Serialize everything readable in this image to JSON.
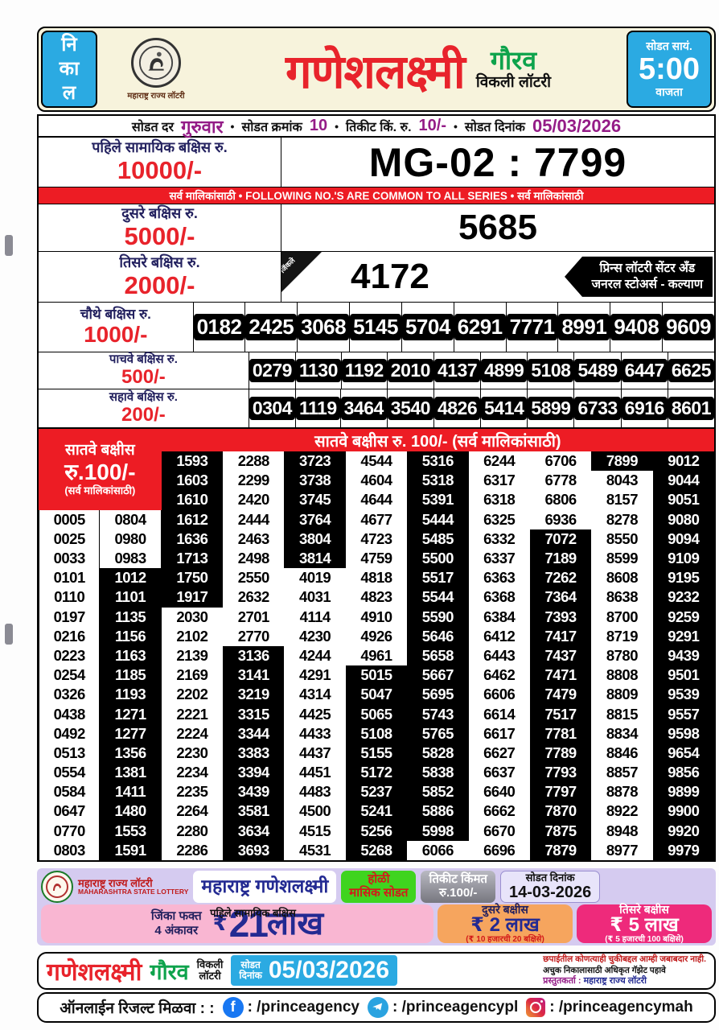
{
  "header": {
    "left_vertical": [
      "नि",
      "का",
      "ल"
    ],
    "logo_caption": "महाराष्ट्र राज्य लॉटरी",
    "title": "गणेशलक्ष्मी",
    "subtitle": "गौरव",
    "subtitle2": "विकली लॉटरी",
    "right_top": "सोडत सायं.",
    "right_time": "5:00",
    "right_bottom": "वाजता"
  },
  "infobar": {
    "draw_day_label": "सोडत दर",
    "draw_day": "गुरुवार",
    "bullet": "•",
    "draw_no_label": "सोडत क्रमांक",
    "draw_no": "10",
    "ticket_label": "तिकीट किं. रु.",
    "ticket_price": "10/-",
    "date_label": "सोडत दिनांक",
    "date": "05/03/2026"
  },
  "prizes": {
    "first": {
      "label": "पहिले सामायिक बक्षिस रु.",
      "amount": "10000/-",
      "number": "MG-02 : 7799"
    },
    "common_bar": "सर्व मालिकांसाठी  •  FOLLOWING NO.'S ARE COMMON TO ALL SERIES  •  सर्व मालिकांसाठी",
    "second": {
      "label": "दुसरे बक्षिस रु.",
      "amount": "5000/-",
      "number": "5685"
    },
    "third": {
      "label": "तिसरे बक्षिस रु.",
      "amount": "2000/-",
      "number": "4172",
      "ribbon": "जिंकले",
      "seller_line1": "प्रिन्स लॉटरी सेंटर अँड",
      "seller_line2": "जनरल स्टोअर्स - कल्याण"
    },
    "fourth": {
      "label": "चौथे बक्षिस रु.",
      "amount": "1000/-",
      "numbers": [
        "0182",
        "2425",
        "3068",
        "5145",
        "5704",
        "6291",
        "7771",
        "8991",
        "9408",
        "9609"
      ]
    },
    "fifth": {
      "label": "पाचवे बक्षिस रु.",
      "amount": "500/-",
      "numbers": [
        "0279",
        "1130",
        "1192",
        "2010",
        "4137",
        "4899",
        "5108",
        "5489",
        "6447",
        "6625"
      ]
    },
    "sixth": {
      "label": "सहावे बक्षिस रु.",
      "amount": "200/-",
      "numbers": [
        "0304",
        "1119",
        "3464",
        "3540",
        "4826",
        "5414",
        "5899",
        "6733",
        "6916",
        "8601"
      ]
    },
    "seventh": {
      "header": "सातवे बक्षीस रु. 100/- (सर्व मालिकांसाठी)",
      "label_line1": "सातवे बक्षीस",
      "label_line2": "रु.100/-",
      "label_line3": "(सर्व मालिकांसाठी)",
      "col_a": [
        "0005",
        "0025",
        "0033",
        "0101",
        "0110",
        "0197",
        "0216",
        "0223",
        "0254",
        "0326",
        "0438",
        "0492",
        "0513",
        "0554",
        "0584",
        "0647",
        "0770",
        "0803"
      ],
      "col_b": [
        "0804",
        "0980",
        "0983",
        "1012",
        "1101",
        "1135",
        "1156",
        "1163",
        "1185",
        "1193",
        "1271",
        "1277",
        "1356",
        "1381",
        "1411",
        "1480",
        "1553",
        "1591"
      ],
      "columns": [
        [
          "1593",
          "1603",
          "1610",
          "1612",
          "1636",
          "1713",
          "1750",
          "1917",
          "2030",
          "2102",
          "2139",
          "2169",
          "2202",
          "2221",
          "2224",
          "2230",
          "2234",
          "2235",
          "2264",
          "2280",
          "2286"
        ],
        [
          "2288",
          "2299",
          "2420",
          "2444",
          "2463",
          "2498",
          "2550",
          "2632",
          "2701",
          "2770",
          "3136",
          "3141",
          "3219",
          "3315",
          "3344",
          "3383",
          "3394",
          "3439",
          "3581",
          "3634",
          "3693"
        ],
        [
          "3723",
          "3738",
          "3745",
          "3764",
          "3804",
          "3814",
          "4019",
          "4031",
          "4114",
          "4230",
          "4244",
          "4291",
          "4314",
          "4425",
          "4433",
          "4437",
          "4451",
          "4483",
          "4500",
          "4515",
          "4531"
        ],
        [
          "4544",
          "4604",
          "4644",
          "4677",
          "4723",
          "4759",
          "4818",
          "4823",
          "4910",
          "4926",
          "4961",
          "5015",
          "5047",
          "5065",
          "5108",
          "5155",
          "5172",
          "5237",
          "5241",
          "5256",
          "5268"
        ],
        [
          "5316",
          "5318",
          "5391",
          "5444",
          "5485",
          "5500",
          "5517",
          "5544",
          "5590",
          "5646",
          "5658",
          "5667",
          "5695",
          "5743",
          "5765",
          "5828",
          "5838",
          "5852",
          "5886",
          "5998",
          "6066"
        ],
        [
          "6244",
          "6317",
          "6318",
          "6325",
          "6332",
          "6337",
          "6363",
          "6368",
          "6384",
          "6412",
          "6443",
          "6462",
          "6606",
          "6614",
          "6617",
          "6627",
          "6637",
          "6640",
          "6662",
          "6670",
          "6696"
        ],
        [
          "6706",
          "6778",
          "6806",
          "6936",
          "7072",
          "7189",
          "7262",
          "7364",
          "7393",
          "7417",
          "7437",
          "7471",
          "7479",
          "7517",
          "7781",
          "7789",
          "7793",
          "7797",
          "7870",
          "7875",
          "7879"
        ],
        [
          "7899",
          "8043",
          "8157",
          "8278",
          "8550",
          "8599",
          "8608",
          "8638",
          "8700",
          "8719",
          "8780",
          "8808",
          "8809",
          "8815",
          "8834",
          "8846",
          "8857",
          "8878",
          "8922",
          "8948",
          "8977"
        ],
        [
          "9012",
          "9044",
          "9051",
          "9080",
          "9094",
          "9109",
          "9195",
          "9232",
          "9259",
          "9291",
          "9439",
          "9501",
          "9539",
          "9557",
          "9598",
          "9654",
          "9856",
          "9899",
          "9900",
          "9920",
          "9979"
        ]
      ]
    }
  },
  "promo": {
    "lottery_line1": "महाराष्ट्र राज्य लॉटरी",
    "lottery_line2": "MAHARASHTRA STATE LOTTERY",
    "scheme": "महाराष्ट्र गणेशलक्ष्मी",
    "holi_line1": "होळी",
    "holi_line2": "मासिक सोडत",
    "ticket_price_label": "तिकीट किंमत",
    "ticket_price": "रु.100/-",
    "draw_date_label": "सोडत दिनांक",
    "draw_date": "14-03-2026",
    "win_line1": "जिंका फक्त",
    "win_line2": "4 अंकावर",
    "first_prize_label": "पहिले सामायिक बक्षिस",
    "rupee": "₹",
    "first_amount": "21",
    "first_unit": "लाख",
    "second_label": "दुसरे बक्षीस",
    "second_amount": "₹ 2 लाख",
    "second_note": "(₹ 10 हजारची 20 बक्षिसे)",
    "third_label": "तिसरे बक्षीस",
    "third_amount": "₹ 5 लाख",
    "third_note": "(₹ 5 हजारची 100 बक्षिसे)"
  },
  "strip1": {
    "name": "गणेशलक्ष्मी",
    "variant": "गौरव",
    "weekly_line1": "विकली",
    "weekly_line2": "लॉटरी",
    "draw_label1": "सोडत",
    "draw_label2": "दिनांक",
    "date": "05/03/2026",
    "disclaimer1": "छपाईतील कोणत्याही चुकीबद्दल आम्ही जबाबदार नाही.",
    "disclaimer2": "अचुक निकालासाठी अधिकृत गॅझेट पहावे",
    "presenter_label": "प्रस्तुतकर्ता :",
    "presenter": "महाराष्ट्र राज्य लॉटरी"
  },
  "social": {
    "heading": "ऑनलाईन रिजल्ट मिळवा : :",
    "facebook_icon_letter": "f",
    "facebook": ": /princeagency",
    "telegram": ": /princeagencypl",
    "instagram": ": /princeagencymah"
  },
  "colors": {
    "accent_red": "#ed1c24",
    "accent_blue": "#2baae2",
    "accent_magenta": "#941c87",
    "accent_green": "#0ea34c",
    "promo_lavender": "#d5cbf0"
  }
}
